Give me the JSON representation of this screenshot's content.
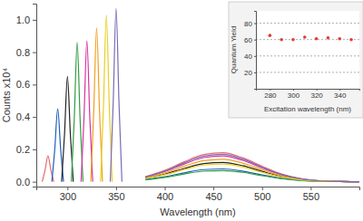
{
  "chart_data": [
    {
      "type": "line",
      "xlabel": "Wavelength (nm)",
      "ylabel": "Counts x10⁴",
      "xlim": [
        268,
        600
      ],
      "ylim": [
        -0.03,
        1.1
      ],
      "xticks": [
        300,
        350,
        400,
        450,
        500,
        550
      ],
      "yticks": [
        {
          "value": 0,
          "label": "0.0"
        },
        {
          "value": 0.2,
          "label": "0.2"
        },
        {
          "value": 0.4,
          "label": "0.4"
        },
        {
          "value": 0.6,
          "label": "0.6"
        },
        {
          "value": 0.8,
          "label": "0.8"
        },
        {
          "value": 1,
          "label": "1.0"
        }
      ],
      "grid": false,
      "series": [
        {
          "color": "#e8696b",
          "x": [
            274,
            277,
            280,
            283,
            286,
            365,
            380,
            400,
            420,
            440,
            460,
            480,
            500,
            520,
            540,
            560,
            580,
            600
          ],
          "values": [
            0,
            0.072,
            0.16,
            0.072,
            0,
            null,
            0.031,
            0.07,
            0.123,
            0.168,
            0.179,
            0.148,
            0.096,
            0.048,
            0.019,
            0.006,
            0.001,
            0
          ]
        },
        {
          "color": "#1f5fbf",
          "x": [
            284,
            287,
            290,
            293,
            296,
            365,
            380,
            400,
            420,
            440,
            460,
            480,
            500,
            520,
            540,
            560,
            580,
            600
          ],
          "values": [
            0,
            0.203,
            0.45,
            0.203,
            0,
            null,
            0.014,
            0.031,
            0.055,
            0.075,
            0.079,
            0.066,
            0.042,
            0.021,
            0.008,
            0.003,
            0.001,
            0
          ]
        },
        {
          "color": "#222222",
          "x": [
            294,
            297,
            300,
            303,
            306,
            365,
            380,
            400,
            420,
            440,
            460,
            480,
            500,
            520,
            540,
            560,
            580,
            600
          ],
          "values": [
            0,
            0.293,
            0.65,
            0.293,
            0,
            null,
            0.021,
            0.047,
            0.082,
            0.112,
            0.119,
            0.099,
            0.064,
            0.032,
            0.012,
            0.004,
            0.001,
            0
          ]
        },
        {
          "color": "#2e9e3e",
          "x": [
            304,
            307,
            310,
            313,
            316,
            365,
            380,
            400,
            420,
            440,
            460,
            480,
            500,
            520,
            540,
            560,
            580,
            600
          ],
          "values": [
            0,
            0.387,
            0.86,
            0.387,
            0,
            null,
            0.012,
            0.027,
            0.048,
            0.065,
            0.069,
            0.058,
            0.037,
            0.019,
            0.007,
            0.002,
            0.001,
            0
          ]
        },
        {
          "color": "#d6339f",
          "x": [
            314,
            317,
            320,
            323,
            326,
            365,
            380,
            400,
            420,
            440,
            460,
            480,
            500,
            520,
            540,
            560,
            580,
            600
          ],
          "values": [
            0,
            0.392,
            0.87,
            0.392,
            0,
            null,
            0.028,
            0.062,
            0.109,
            0.149,
            0.159,
            0.132,
            0.085,
            0.043,
            0.017,
            0.005,
            0.001,
            0
          ]
        },
        {
          "color": "#f0a020",
          "x": [
            324,
            327,
            330,
            333,
            336,
            365,
            380,
            400,
            420,
            440,
            460,
            480,
            500,
            520,
            540,
            560,
            580,
            600
          ],
          "values": [
            0,
            0.428,
            0.95,
            0.428,
            0,
            null,
            0.024,
            0.054,
            0.095,
            0.13,
            0.139,
            0.115,
            0.074,
            0.037,
            0.015,
            0.004,
            0.001,
            0
          ]
        },
        {
          "color": "#e8d020",
          "x": [
            334,
            337,
            340,
            343,
            346,
            365,
            380,
            400,
            420,
            440,
            460,
            480,
            500,
            520,
            540,
            560,
            580,
            600
          ],
          "values": [
            0,
            0.464,
            1.03,
            0.464,
            0,
            null,
            0.019,
            0.043,
            0.075,
            0.103,
            0.109,
            0.091,
            0.058,
            0.029,
            0.011,
            0.004,
            0.001,
            0
          ]
        },
        {
          "color": "#7a6ab8",
          "x": [
            344,
            347,
            350,
            353,
            356,
            365,
            380,
            400,
            420,
            440,
            460,
            480,
            500,
            520,
            540,
            560,
            580,
            600
          ],
          "values": [
            0,
            0.482,
            1.07,
            0.482,
            0,
            null,
            0.029,
            0.066,
            0.116,
            0.158,
            0.169,
            0.14,
            0.09,
            0.045,
            0.018,
            0.005,
            0.001,
            0
          ]
        }
      ]
    },
    {
      "type": "scatter",
      "xlabel": "Excitation wavelength (nm)",
      "ylabel": "Quantum Yield",
      "xlim": [
        268,
        357
      ],
      "ylim": [
        0,
        95
      ],
      "xticks": [
        280,
        300,
        320,
        340
      ],
      "yticks": [
        20,
        40,
        60,
        80
      ],
      "grid": true,
      "marker": "circle",
      "color": "#e03c31",
      "x": [
        280,
        290,
        300,
        310,
        320,
        330,
        340,
        350
      ],
      "values": [
        65,
        60,
        60,
        63,
        61,
        62,
        61,
        60
      ]
    }
  ]
}
